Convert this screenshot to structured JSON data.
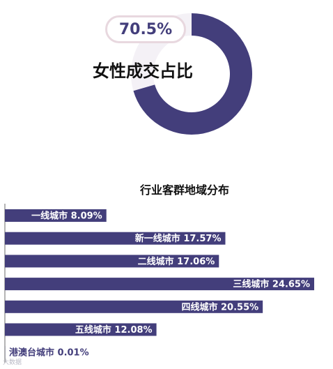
{
  "colors": {
    "accent": "#433e7b",
    "ring_track": "#f4f1f6",
    "pill_border": "#e8d8df"
  },
  "chart_data": [
    {
      "type": "pie",
      "title": "女性成交占比",
      "value_label": "70.5%",
      "values": [
        70.5,
        29.5
      ]
    },
    {
      "type": "bar",
      "orientation": "horizontal",
      "title": "行业客群地域分布",
      "categories": [
        "一线城市",
        "新一线城市",
        "二线城市",
        "三线城市",
        "四线城市",
        "五线城市",
        "港澳台城市"
      ],
      "values": [
        8.09,
        17.57,
        17.06,
        24.65,
        20.55,
        12.08,
        0.01
      ],
      "labels": [
        "一线城市 8.09%",
        "新一线城市 17.57%",
        "二线城市 17.06%",
        "三线城市 24.65%",
        "四线城市 20.55%",
        "五线城市 12.08%",
        "港澳台城市 0.01%"
      ],
      "xlim": [
        0,
        24.65
      ]
    }
  ],
  "watermark": "大数据"
}
